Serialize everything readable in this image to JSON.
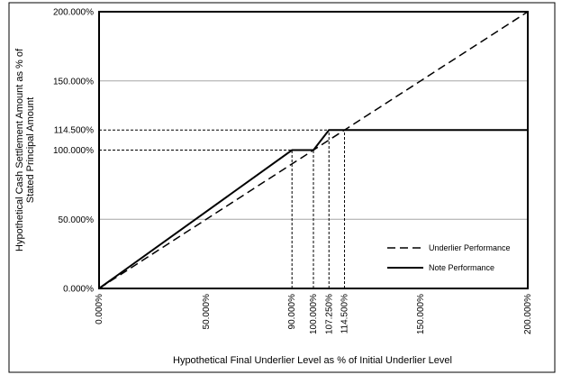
{
  "chart_data": {
    "type": "line",
    "xlabel": "Hypothetical Final Underlier Level as % of Initial Underlier Level",
    "ylabel": "Hypothetical Cash Settlement Amount as % of Stated Principal Amount",
    "xlim": [
      0,
      200
    ],
    "ylim": [
      0,
      200
    ],
    "x_ticks": [
      "0.000%",
      "50.000%",
      "90.000%",
      "100.000%",
      "107.250%",
      "114.500%",
      "150.000%",
      "200.000%"
    ],
    "y_ticks": [
      "0.000%",
      "50.000%",
      "100.000%",
      "114.500%",
      "150.000%",
      "200.000%"
    ],
    "grid": "horizontal",
    "legend_position": "bottom-right",
    "series": [
      {
        "name": "Underlier Performance",
        "style": "dashed",
        "x": [
          0,
          200
        ],
        "y": [
          0,
          200
        ]
      },
      {
        "name": "Note Performance",
        "style": "solid",
        "x": [
          0,
          90,
          100,
          107.25,
          200
        ],
        "y": [
          0,
          100,
          100,
          114.5,
          114.5
        ]
      }
    ],
    "reference_lines": [
      {
        "axis": "x",
        "value": 90,
        "to_y": 100
      },
      {
        "axis": "x",
        "value": 100,
        "to_y": 100
      },
      {
        "axis": "x",
        "value": 107.25,
        "to_y": 114.5
      },
      {
        "axis": "x",
        "value": 114.5,
        "to_y": 114.5
      },
      {
        "axis": "y",
        "value": 100,
        "to_x": 90
      },
      {
        "axis": "y",
        "value": 114.5,
        "to_x": 114.5
      }
    ],
    "colors": {
      "lines": "#000000",
      "grid": "#a6a6a6",
      "border": "#000000"
    }
  }
}
